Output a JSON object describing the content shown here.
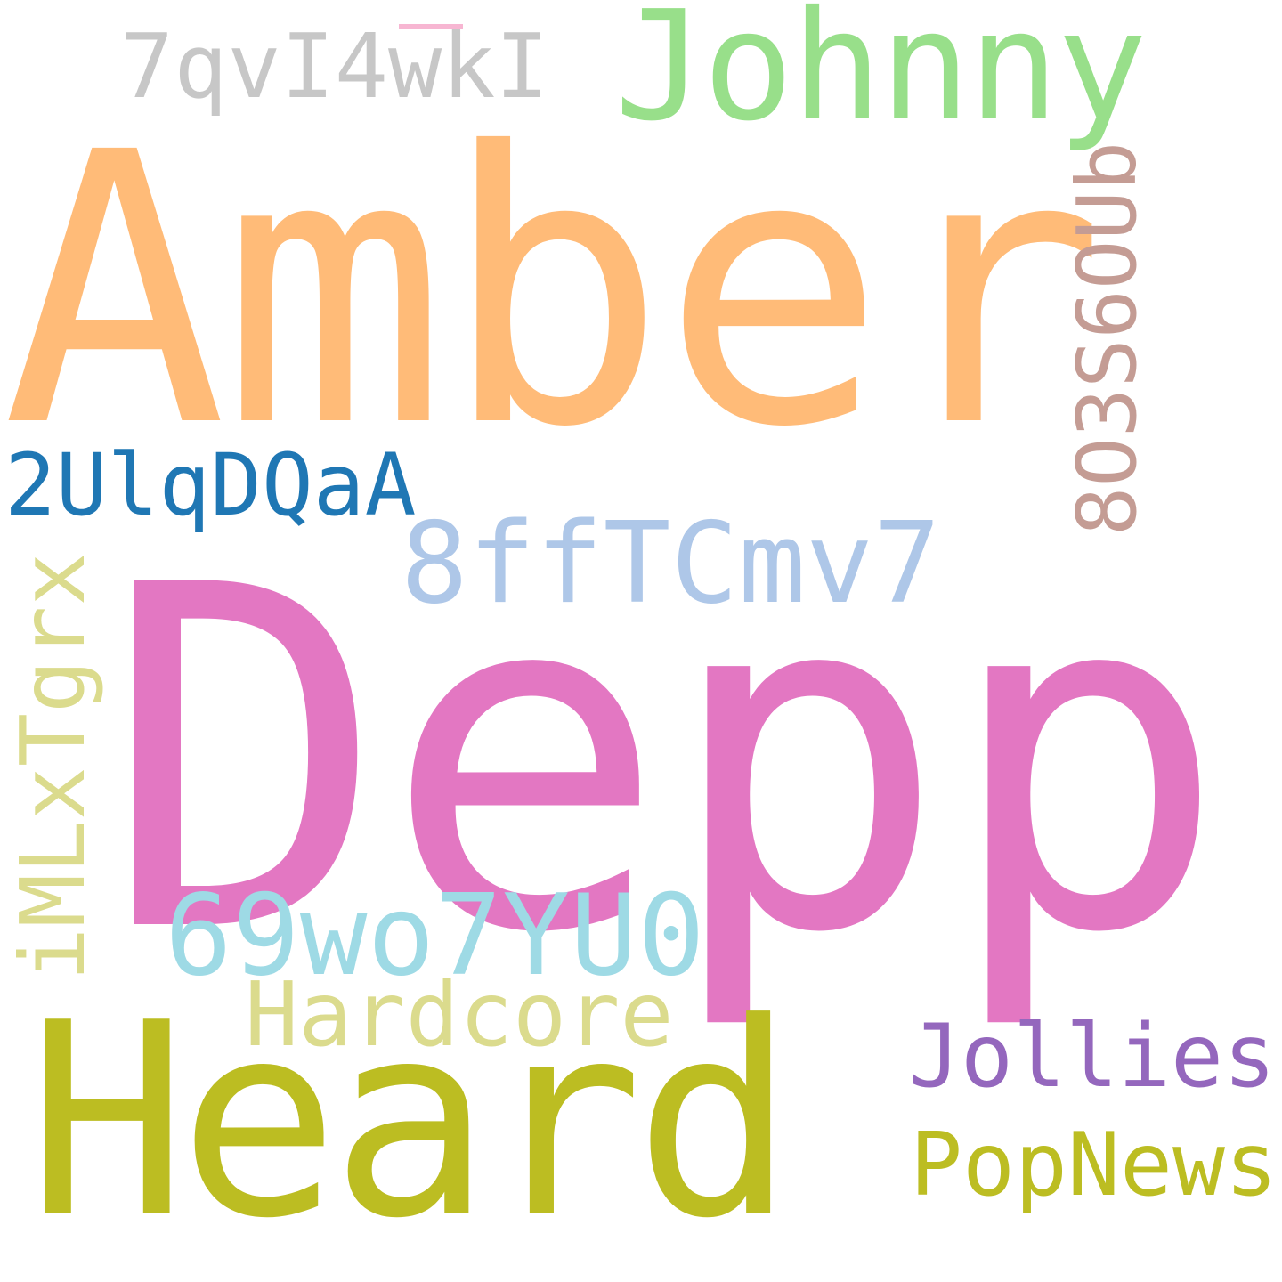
{
  "words": [
    {
      "text": "Amber",
      "color": "#ffbb78"
    },
    {
      "text": "Depp",
      "color": "#e377c2"
    },
    {
      "text": "Heard",
      "color": "#bcbd22"
    },
    {
      "text": "Johnny",
      "color": "#98df8a"
    },
    {
      "text": "7qvI4wkI",
      "color": "#c7c7c7"
    },
    {
      "text": "2UlqDQaA",
      "color": "#1f77b4"
    },
    {
      "text": "8ffTCmv7",
      "color": "#aec7e8"
    },
    {
      "text": "69wo7YU0",
      "color": "#9edae5"
    },
    {
      "text": "Hardcore",
      "color": "#dbdb8d"
    },
    {
      "text": "Jollies",
      "color": "#9467bd"
    },
    {
      "text": "PopNews",
      "color": "#bcbd22"
    },
    {
      "text": "8O3S6OUb",
      "color": "#c49c94"
    },
    {
      "text": "iMLxTgrx",
      "color": "#dbdb8d"
    }
  ],
  "accent_mark_color": "#f7b6d2"
}
